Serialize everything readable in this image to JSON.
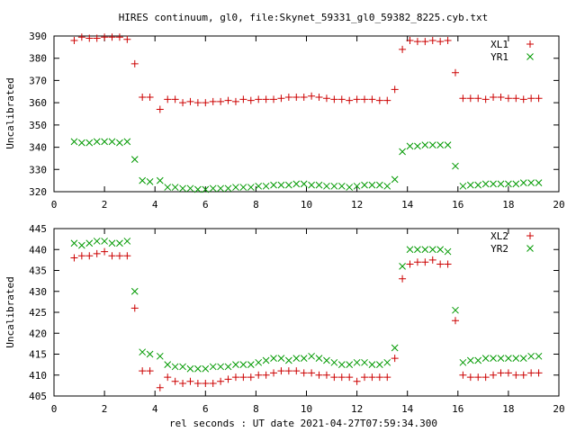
{
  "chart_data": [
    {
      "type": "scatter",
      "title": "HIRES continuum, gl0, file:Skynet_59331_gl0_59382_8225.cyb.txt",
      "xlabel": "",
      "ylabel": "Uncalibrated",
      "xlim": [
        0,
        20
      ],
      "ylim": [
        320,
        390
      ],
      "xticks": [
        "0",
        "2",
        "4",
        "6",
        "8",
        "10",
        "12",
        "14",
        "16",
        "18",
        "20"
      ],
      "yticks": [
        "320",
        "330",
        "340",
        "350",
        "360",
        "370",
        "380",
        "390"
      ],
      "legend_position": "top-right",
      "x": [
        0.8,
        1.1,
        1.4,
        1.7,
        2.0,
        2.3,
        2.6,
        2.9,
        3.2,
        3.5,
        3.8,
        4.2,
        4.5,
        4.8,
        5.1,
        5.4,
        5.7,
        6.0,
        6.3,
        6.6,
        6.9,
        7.2,
        7.5,
        7.8,
        8.1,
        8.4,
        8.7,
        9.0,
        9.3,
        9.6,
        9.9,
        10.2,
        10.5,
        10.8,
        11.1,
        11.4,
        11.7,
        12.0,
        12.3,
        12.6,
        12.9,
        13.2,
        13.5,
        13.8,
        14.1,
        14.4,
        14.7,
        15.0,
        15.3,
        15.6,
        15.9,
        16.2,
        16.5,
        16.8,
        17.1,
        17.4,
        17.7,
        18.0,
        18.3,
        18.6,
        18.9,
        19.2
      ],
      "series": [
        {
          "name": "XL1",
          "marker": "plus",
          "color": "#cc0000",
          "values": [
            388,
            389.5,
            389,
            389,
            389.5,
            389.5,
            389.5,
            388.5,
            377.5,
            362.5,
            362.5,
            357,
            361.5,
            361.5,
            360,
            360.5,
            360,
            360,
            360.5,
            360.5,
            361,
            360.5,
            361.5,
            361,
            361.5,
            361.5,
            361.5,
            362,
            362.5,
            362.5,
            362.5,
            363,
            362.5,
            362,
            361.5,
            361.5,
            361,
            361.5,
            361.5,
            361.5,
            361,
            361,
            366,
            384,
            388,
            387.5,
            387.5,
            388,
            387.5,
            388,
            373.5,
            362,
            362,
            362,
            361.5,
            362.5,
            362.5,
            362,
            362,
            361.5,
            362,
            362
          ]
        },
        {
          "name": "YR1",
          "marker": "cross",
          "color": "#009900",
          "values": [
            342.5,
            342,
            342,
            342.5,
            342.5,
            342.5,
            342,
            342.5,
            334.5,
            325,
            324.5,
            325,
            322,
            322,
            321.5,
            321.5,
            321,
            321,
            321.5,
            321.5,
            321.5,
            322,
            322,
            322,
            322.5,
            322.5,
            323,
            323,
            323,
            323.5,
            323.5,
            323,
            323,
            322.5,
            322.5,
            322.5,
            322,
            322.5,
            323,
            323,
            323,
            322.5,
            325.5,
            338,
            340.5,
            340.5,
            341,
            341,
            341,
            341,
            331.5,
            322.5,
            323,
            323,
            323.5,
            323.5,
            323.5,
            323.5,
            323.5,
            324,
            324,
            324
          ]
        }
      ]
    },
    {
      "type": "scatter",
      "title": "",
      "xlabel": "rel seconds : UT date 2021-04-27T07:59:34.300",
      "ylabel": "Uncalibrated",
      "xlim": [
        0,
        20
      ],
      "ylim": [
        405,
        445
      ],
      "xticks": [
        "0",
        "2",
        "4",
        "6",
        "8",
        "10",
        "12",
        "14",
        "16",
        "18",
        "20"
      ],
      "yticks": [
        "405",
        "410",
        "415",
        "420",
        "425",
        "430",
        "435",
        "440",
        "445"
      ],
      "legend_position": "top-right",
      "x": [
        0.8,
        1.1,
        1.4,
        1.7,
        2.0,
        2.3,
        2.6,
        2.9,
        3.2,
        3.5,
        3.8,
        4.2,
        4.5,
        4.8,
        5.1,
        5.4,
        5.7,
        6.0,
        6.3,
        6.6,
        6.9,
        7.2,
        7.5,
        7.8,
        8.1,
        8.4,
        8.7,
        9.0,
        9.3,
        9.6,
        9.9,
        10.2,
        10.5,
        10.8,
        11.1,
        11.4,
        11.7,
        12.0,
        12.3,
        12.6,
        12.9,
        13.2,
        13.5,
        13.8,
        14.1,
        14.4,
        14.7,
        15.0,
        15.3,
        15.6,
        15.9,
        16.2,
        16.5,
        16.8,
        17.1,
        17.4,
        17.7,
        18.0,
        18.3,
        18.6,
        18.9,
        19.2
      ],
      "series": [
        {
          "name": "XL2",
          "marker": "plus",
          "color": "#cc0000",
          "values": [
            438,
            438.5,
            438.5,
            439,
            439.5,
            438.5,
            438.5,
            438.5,
            426,
            411,
            411,
            407,
            409.5,
            408.5,
            408,
            408.5,
            408,
            408,
            408,
            408.5,
            409,
            409.5,
            409.5,
            409.5,
            410,
            410,
            410.5,
            411,
            411,
            411,
            410.5,
            410.5,
            410,
            410,
            409.5,
            409.5,
            409.5,
            408.5,
            409.5,
            409.5,
            409.5,
            409.5,
            414,
            433,
            436.5,
            437,
            437,
            437.5,
            436.5,
            436.5,
            423,
            410,
            409.5,
            409.5,
            409.5,
            410,
            410.5,
            410.5,
            410,
            410,
            410.5,
            410.5
          ]
        },
        {
          "name": "YR2",
          "marker": "cross",
          "color": "#009900",
          "values": [
            441.5,
            441,
            441.5,
            442,
            442,
            441.5,
            441.5,
            442,
            430,
            415.5,
            415,
            414.5,
            412.5,
            412,
            412,
            411.5,
            411.5,
            411.5,
            412,
            412,
            412,
            412.5,
            412.5,
            412.5,
            413,
            413.5,
            414,
            414,
            413.5,
            414,
            414,
            414.5,
            414,
            413.5,
            413,
            412.5,
            412.5,
            413,
            413,
            412.5,
            412.5,
            413,
            416.5,
            436,
            440,
            440,
            440,
            440,
            440,
            439.5,
            425.5,
            413,
            413.5,
            413.5,
            414,
            414,
            414,
            414,
            414,
            414,
            414.5,
            414.5
          ]
        }
      ]
    }
  ]
}
